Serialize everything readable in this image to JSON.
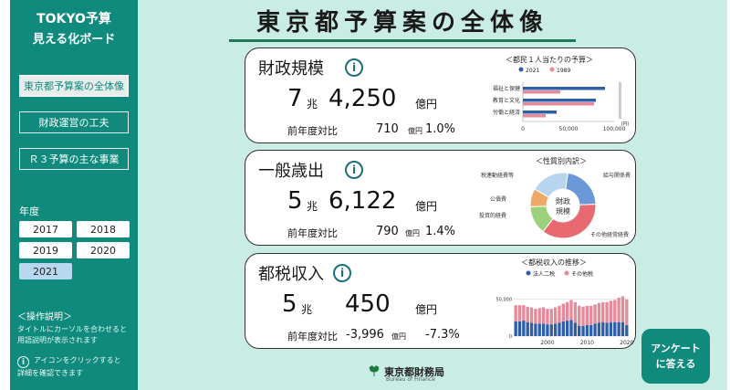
{
  "sidebar": {
    "brand_line1": "TOKYO予算",
    "brand_line2": "見える化ボード",
    "nav": [
      {
        "label": "東京都予算案の全体像"
      },
      {
        "label": "財政運営の工夫"
      },
      {
        "label": "Ｒ３予算の主な事業"
      }
    ],
    "year_label": "年度",
    "years": [
      "2017",
      "2018",
      "2019",
      "2020",
      "2021"
    ],
    "help_title": "＜操作説明＞",
    "help_text1_line1": "タイトルにカーソルを合わせると",
    "help_text1_line2": "用語説明が表示されます",
    "help_text2_line1": "アイコンをクリックすると",
    "help_text2_line2": "詳細を確認できます",
    "info_glyph": "i"
  },
  "main": {
    "title": "東京都予算案の全体像",
    "cards": [
      {
        "title": "財政規模",
        "trillion": "7",
        "trillion_unit": "兆",
        "rest": "4,250",
        "yen_unit": "億円",
        "yoy_label": "前年度対比",
        "yoy_amount": "710",
        "yoy_unit": "億円",
        "yoy_pct": "1.0%"
      },
      {
        "title": "一般歳出",
        "trillion": "5",
        "trillion_unit": "兆",
        "rest": "6,122",
        "yen_unit": "億円",
        "yoy_label": "前年度対比",
        "yoy_amount": "790",
        "yoy_unit": "億円",
        "yoy_pct": "1.4%"
      },
      {
        "title": "都税収入",
        "trillion": "5",
        "trillion_unit": "兆",
        "rest": "450",
        "yen_unit": "億円",
        "yoy_label": "前年度対比",
        "yoy_amount": "-3,996",
        "yoy_unit": "億円",
        "yoy_pct": "-7.3%"
      }
    ],
    "survey_line1": "アンケート",
    "survey_line2": "に答える",
    "footer_jp": "東京都財務局",
    "footer_en": "Bureau of Finance",
    "info_glyph": "i"
  },
  "colors": {
    "sidebar": "#0f8a7c",
    "main_bg": "#c9ede4",
    "series_2021": "#2f5ea8",
    "series_1989": "#e58a9a",
    "donut_blue": "#6a98d8",
    "donut_green": "#9ad17a",
    "donut_red": "#e86a70",
    "donut_orange": "#f0a868"
  },
  "chart_data": [
    {
      "type": "bar",
      "orientation": "horizontal",
      "title": "＜都民１人当たりの予算＞",
      "categories": [
        "福祉と保健",
        "教育と文化",
        "労働と経済"
      ],
      "series": [
        {
          "name": "2021",
          "values": [
            90000,
            80000,
            37000
          ]
        },
        {
          "name": "1989",
          "values": [
            41000,
            78000,
            25000
          ]
        }
      ],
      "xlim": [
        0,
        100000
      ],
      "xticks": [
        "0",
        "50,000",
        "100,000"
      ],
      "xunit": "(円)"
    },
    {
      "type": "pie",
      "title": "＜性質別内訳＞",
      "center_label_line1": "財政",
      "center_label_line2": "規模",
      "slices": [
        {
          "label": "給与関係費",
          "value": 22,
          "color": "#6a98d8"
        },
        {
          "label": "その他経常経費",
          "value": 36,
          "color": "#e86a70"
        },
        {
          "label": "投資的経費",
          "value": 14,
          "color": "#9ad17a"
        },
        {
          "label": "公債費",
          "value": 9,
          "color": "#f0a868"
        },
        {
          "label": "税連動経費等",
          "value": 19,
          "color": "#b8d4ef"
        }
      ]
    },
    {
      "type": "bar",
      "stacked": true,
      "title": "＜都税収入の推移＞",
      "series": [
        {
          "name": "法人二税",
          "values": [
            20000,
            20000,
            21000,
            19000,
            18000,
            17000,
            17000,
            17000,
            16000,
            16000,
            17000,
            18000,
            20000,
            21000,
            22000,
            18000,
            14000,
            14000,
            15000,
            15000,
            17000,
            18000,
            19000,
            18000,
            19000,
            19000,
            19000,
            19000,
            15000
          ]
        },
        {
          "name": "その他税",
          "values": [
            22000,
            22000,
            21000,
            21000,
            21000,
            20000,
            21000,
            22000,
            21000,
            21000,
            22000,
            23000,
            24000,
            25000,
            27000,
            28000,
            27000,
            26000,
            26000,
            26000,
            26000,
            27000,
            27000,
            28000,
            29000,
            30000,
            33000,
            35000,
            35000
          ]
        }
      ],
      "x": [
        1992,
        1993,
        1994,
        1995,
        1996,
        1997,
        1998,
        1999,
        2000,
        2001,
        2002,
        2003,
        2004,
        2005,
        2006,
        2007,
        2008,
        2009,
        2010,
        2011,
        2012,
        2013,
        2014,
        2015,
        2016,
        2017,
        2018,
        2019,
        2020
      ],
      "xticks": [
        "2000",
        "2010",
        "2020"
      ],
      "ylim": [
        0,
        60000
      ],
      "yticks": [
        "0",
        "50,000"
      ]
    }
  ]
}
